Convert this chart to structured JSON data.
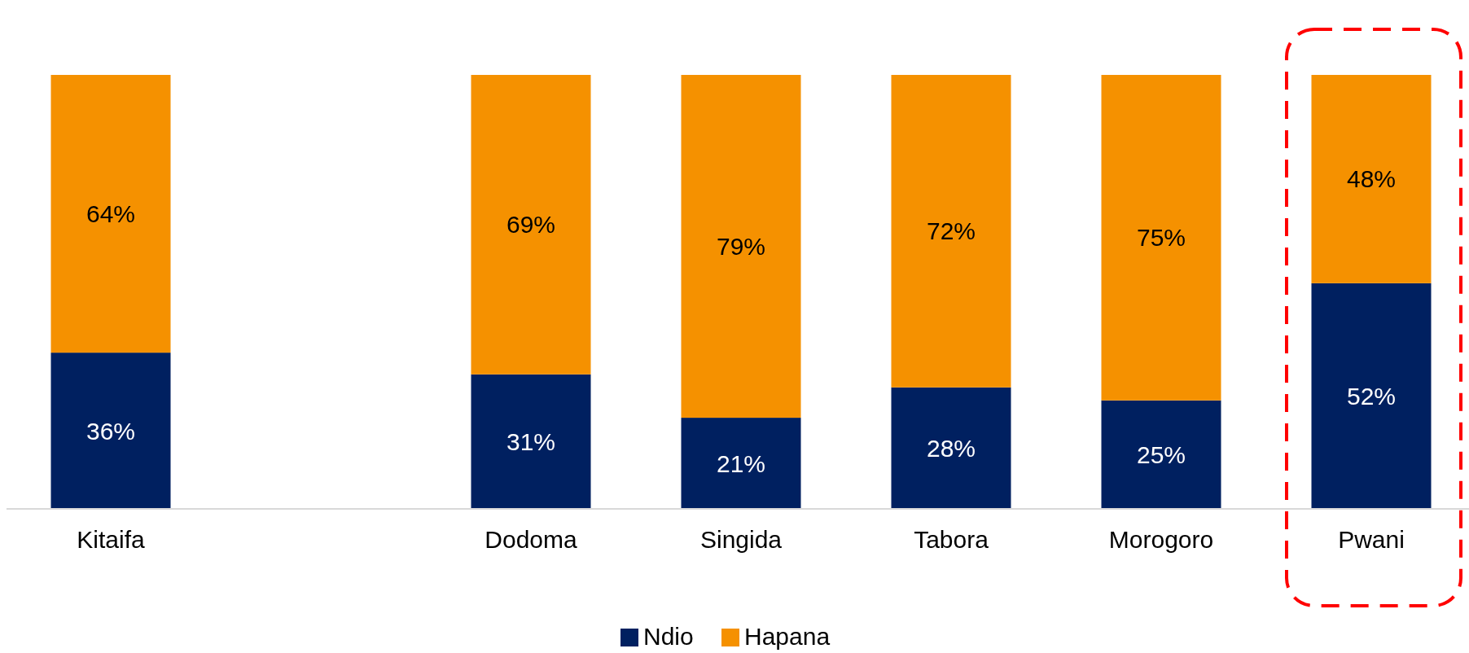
{
  "chart_data": {
    "type": "bar",
    "stacked": true,
    "categories": [
      "Kitaifa",
      null,
      "Dodoma",
      "Singida",
      "Tabora",
      "Morogoro",
      "Pwani"
    ],
    "series": [
      {
        "name": "Ndio",
        "color": "#002060",
        "values": [
          36,
          null,
          31,
          21,
          28,
          25,
          52
        ],
        "value_labels": [
          "36%",
          null,
          "31%",
          "21%",
          "28%",
          "25%",
          "52%"
        ]
      },
      {
        "name": "Hapana",
        "color": "#f59100",
        "values": [
          64,
          null,
          69,
          79,
          72,
          75,
          48
        ],
        "value_labels": [
          "64%",
          null,
          "69%",
          "79%",
          "72%",
          "75%",
          "48%"
        ]
      }
    ],
    "legend": "bottom"
  }
}
